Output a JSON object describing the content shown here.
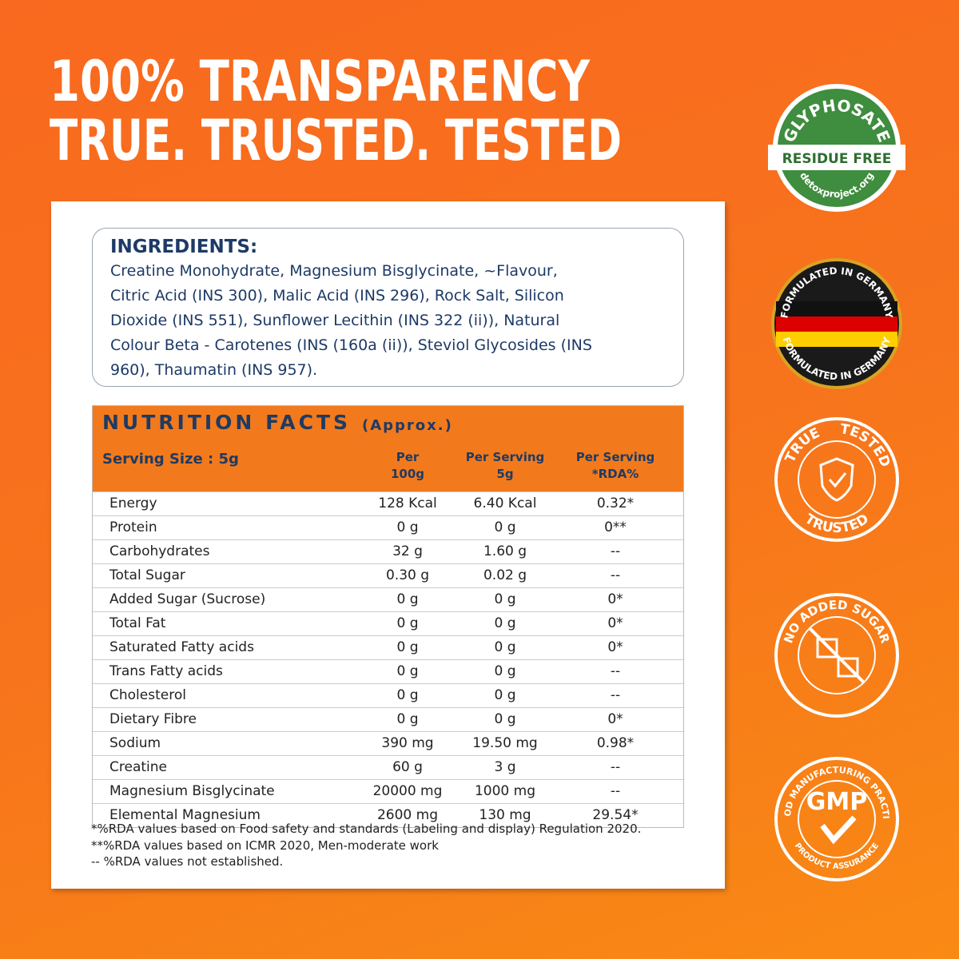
{
  "header": {
    "line1": "100% TRANSPARENCY",
    "line2": "TRUE. TRUSTED. TESTED"
  },
  "ingredients": {
    "title": "INGREDIENTS:",
    "lines": [
      "Creatine Monohydrate, Magnesium Bisglycinate, ~Flavour,",
      "Citric Acid (INS 300), Malic Acid (INS 296), Rock Salt, Silicon",
      "Dioxide (INS 551), Sunflower Lecithin (INS 322 (ii)), Natural",
      "Colour Beta - Carotenes (INS (160a (ii)), Steviol Glycosides (INS",
      "960), Thaumatin (INS 957)."
    ]
  },
  "nutrition": {
    "title": "NUTRITION FACTS",
    "subtitle": "(Approx.)",
    "columns": [
      [
        "Serving Size : 5g"
      ],
      [
        "Per",
        "100g"
      ],
      [
        "Per Serving",
        "5g"
      ],
      [
        "Per Serving",
        "*RDA%"
      ]
    ],
    "rows": [
      [
        "Energy",
        "128 Kcal",
        "6.40 Kcal",
        "0.32*"
      ],
      [
        "Protein",
        "0 g",
        "0 g",
        "0**"
      ],
      [
        "Carbohydrates",
        "32 g",
        "1.60 g",
        "--"
      ],
      [
        "Total Sugar",
        "0.30 g",
        "0.02 g",
        "--"
      ],
      [
        "Added Sugar (Sucrose)",
        "0 g",
        "0 g",
        "0*"
      ],
      [
        "Total Fat",
        "0 g",
        "0 g",
        "0*"
      ],
      [
        "Saturated Fatty acids",
        "0 g",
        "0 g",
        "0*"
      ],
      [
        "Trans Fatty acids",
        "0 g",
        "0 g",
        "--"
      ],
      [
        "Cholesterol",
        "0 g",
        "0 g",
        "--"
      ],
      [
        "Dietary Fibre",
        "0 g",
        "0 g",
        "0*"
      ],
      [
        "Sodium",
        "390 mg",
        "19.50 mg",
        "0.98*"
      ],
      [
        "Creatine",
        "60 g",
        "3 g",
        "--"
      ],
      [
        "Magnesium Bisglycinate",
        "20000 mg",
        "1000 mg",
        "--"
      ],
      [
        "Elemental Magnesium",
        "2600 mg",
        "130 mg",
        "29.54*"
      ]
    ],
    "footnotes": [
      "*%RDA values based on Food safety and standards (Labeling and display) Regulation 2020.",
      "**%RDA values based on ICMR 2020, Men-moderate work",
      "-- %RDA values not established."
    ]
  },
  "badges": [
    {
      "top": "GLYPHOSATE",
      "center": "RESIDUE FREE",
      "bottom": "detoxproject.org"
    },
    {
      "top": "FORMULATED IN GERMANY",
      "bottom": "FORMULATED IN GERMANY"
    },
    {
      "top": "TRUE",
      "top2": "TESTED",
      "bottom": "TRUSTED"
    },
    {
      "top": "NO ADDED SUGAR"
    },
    {
      "top": "GOOD MANUFACTURING PRACTICE",
      "center": "GMP",
      "bottom": "PRODUCT ASSURANCE"
    }
  ]
}
